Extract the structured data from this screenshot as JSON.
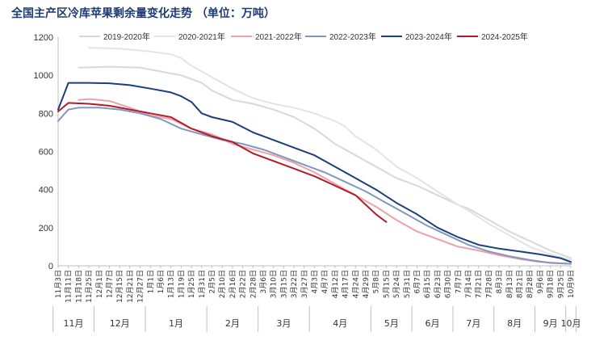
{
  "chart_data": {
    "type": "line",
    "title": "全国主产区冷库苹果剩余量变化走势 （单位：万吨）",
    "ylim": [
      0,
      1200
    ],
    "yticks": [
      0,
      200,
      400,
      600,
      800,
      1000,
      1200
    ],
    "grid": false,
    "legend": "top",
    "x_dates": [
      "11月3日",
      "11月11日",
      "11月18日",
      "11月25日",
      "12月1日",
      "12月7日",
      "12月15日",
      "12月21日",
      "12月27日",
      "1月1日",
      "1月6日",
      "1月13日",
      "1月19日",
      "1月25日",
      "1月31日",
      "2月5日",
      "2月10日",
      "2月16日",
      "2月22日",
      "2月28日",
      "3月6日",
      "3月10日",
      "3月15日",
      "3月22日",
      "3月27日",
      "4月3日",
      "4月7日",
      "4月12日",
      "4月17日",
      "4月24日",
      "4月29日",
      "5月8日",
      "5月15日",
      "5月24日",
      "5月31日",
      "6月7日",
      "6月15日",
      "6月23日",
      "6月30日",
      "7月7日",
      "7月14日",
      "7月21日",
      "7月28日",
      "8月3日",
      "8月13日",
      "8月21日",
      "8月28日",
      "9月6日",
      "9月18日",
      "9月25日",
      "10月9日"
    ],
    "months": [
      "11月",
      "12月",
      "1月",
      "2月",
      "3月",
      "4月",
      "5月",
      "6月",
      "7月",
      "8月",
      "9月",
      "10月"
    ],
    "series": [
      {
        "name": "2019-2020年",
        "color": "#d8d8d8",
        "points": [
          [
            2,
            1040
          ],
          [
            5,
            1045
          ],
          [
            8,
            1040
          ],
          [
            10,
            1020
          ],
          [
            12,
            1000
          ],
          [
            14,
            960
          ],
          [
            15,
            920
          ],
          [
            17,
            870
          ],
          [
            19,
            850
          ],
          [
            21,
            820
          ],
          [
            23,
            780
          ],
          [
            25,
            720
          ],
          [
            27,
            640
          ],
          [
            29,
            580
          ],
          [
            31,
            520
          ],
          [
            33,
            460
          ],
          [
            35,
            420
          ],
          [
            37,
            370
          ],
          [
            39,
            320
          ],
          [
            40,
            300
          ],
          [
            42,
            240
          ],
          [
            44,
            180
          ],
          [
            46,
            130
          ],
          [
            48,
            80
          ],
          [
            50,
            40
          ]
        ]
      },
      {
        "name": "2020-2021年",
        "color": "#e4e4e4",
        "points": [
          [
            3,
            1145
          ],
          [
            6,
            1140
          ],
          [
            9,
            1125
          ],
          [
            11,
            1110
          ],
          [
            12,
            1090
          ],
          [
            13,
            1050
          ],
          [
            15,
            990
          ],
          [
            17,
            930
          ],
          [
            19,
            880
          ],
          [
            21,
            850
          ],
          [
            23,
            830
          ],
          [
            25,
            800
          ],
          [
            27,
            760
          ],
          [
            28,
            730
          ],
          [
            29,
            680
          ],
          [
            31,
            610
          ],
          [
            33,
            520
          ],
          [
            35,
            460
          ],
          [
            37,
            390
          ],
          [
            39,
            320
          ],
          [
            40,
            290
          ],
          [
            42,
            220
          ],
          [
            44,
            160
          ],
          [
            46,
            100
          ],
          [
            48,
            60
          ],
          [
            50,
            30
          ]
        ]
      },
      {
        "name": "2021-2022年",
        "color": "#f0a0a8",
        "points": [
          [
            2,
            870
          ],
          [
            3,
            875
          ],
          [
            5,
            865
          ],
          [
            7,
            830
          ],
          [
            9,
            790
          ],
          [
            11,
            770
          ],
          [
            13,
            720
          ],
          [
            15,
            690
          ],
          [
            17,
            640
          ],
          [
            19,
            610
          ],
          [
            21,
            580
          ],
          [
            23,
            540
          ],
          [
            25,
            490
          ],
          [
            27,
            430
          ],
          [
            29,
            370
          ],
          [
            31,
            310
          ],
          [
            33,
            240
          ],
          [
            35,
            180
          ],
          [
            37,
            140
          ],
          [
            39,
            100
          ],
          [
            41,
            80
          ],
          [
            43,
            55
          ],
          [
            45,
            35
          ],
          [
            47,
            20
          ],
          [
            50,
            10
          ]
        ]
      },
      {
        "name": "2022-2023年",
        "color": "#8098c0",
        "points": [
          [
            0,
            760
          ],
          [
            1,
            820
          ],
          [
            2,
            830
          ],
          [
            4,
            830
          ],
          [
            6,
            820
          ],
          [
            8,
            800
          ],
          [
            10,
            770
          ],
          [
            12,
            720
          ],
          [
            14,
            690
          ],
          [
            16,
            660
          ],
          [
            18,
            640
          ],
          [
            20,
            610
          ],
          [
            22,
            570
          ],
          [
            24,
            530
          ],
          [
            26,
            490
          ],
          [
            28,
            440
          ],
          [
            30,
            390
          ],
          [
            32,
            330
          ],
          [
            34,
            270
          ],
          [
            36,
            210
          ],
          [
            38,
            160
          ],
          [
            40,
            110
          ],
          [
            42,
            75
          ],
          [
            44,
            50
          ],
          [
            46,
            30
          ],
          [
            48,
            15
          ],
          [
            50,
            10
          ]
        ]
      },
      {
        "name": "2023-2024年",
        "color": "#1a3f7a",
        "points": [
          [
            0,
            820
          ],
          [
            1,
            960
          ],
          [
            3,
            960
          ],
          [
            5,
            958
          ],
          [
            7,
            948
          ],
          [
            9,
            930
          ],
          [
            11,
            910
          ],
          [
            12,
            890
          ],
          [
            13,
            860
          ],
          [
            14,
            800
          ],
          [
            15,
            780
          ],
          [
            17,
            755
          ],
          [
            19,
            700
          ],
          [
            21,
            660
          ],
          [
            23,
            620
          ],
          [
            25,
            580
          ],
          [
            27,
            520
          ],
          [
            29,
            460
          ],
          [
            31,
            400
          ],
          [
            33,
            330
          ],
          [
            35,
            270
          ],
          [
            37,
            200
          ],
          [
            39,
            150
          ],
          [
            41,
            110
          ],
          [
            43,
            90
          ],
          [
            45,
            75
          ],
          [
            47,
            60
          ],
          [
            49,
            40
          ],
          [
            50,
            20
          ]
        ]
      },
      {
        "name": "2024-2025年",
        "color": "#b01c2a",
        "points": [
          [
            0,
            810
          ],
          [
            1,
            855
          ],
          [
            3,
            850
          ],
          [
            5,
            840
          ],
          [
            7,
            820
          ],
          [
            9,
            800
          ],
          [
            11,
            780
          ],
          [
            13,
            720
          ],
          [
            15,
            680
          ],
          [
            17,
            650
          ],
          [
            19,
            590
          ],
          [
            21,
            550
          ],
          [
            23,
            510
          ],
          [
            25,
            470
          ],
          [
            27,
            420
          ],
          [
            29,
            370
          ],
          [
            30,
            320
          ],
          [
            31,
            270
          ],
          [
            32,
            230
          ]
        ]
      }
    ]
  }
}
